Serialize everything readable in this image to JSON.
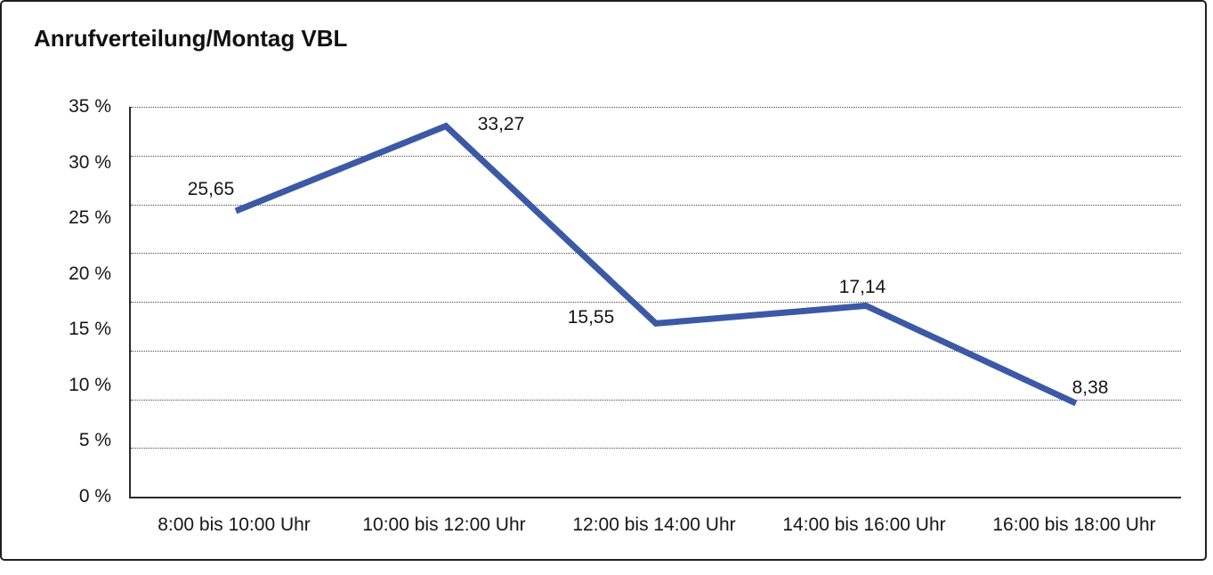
{
  "header": {
    "title": "Anrufverteilung/Montag VBL"
  },
  "chart_data": {
    "type": "line",
    "title": "Anrufverteilung/Montag VBL",
    "categories": [
      "8:00 bis 10:00 Uhr",
      "10:00 bis 12:00 Uhr",
      "12:00 bis 14:00 Uhr",
      "14:00 bis 16:00 Uhr",
      "16:00 bis 18:00 Uhr"
    ],
    "values": [
      25.65,
      33.27,
      15.55,
      17.14,
      8.38
    ],
    "value_labels": [
      "25,65",
      "33,27",
      "15,55",
      "17,14",
      "8,38"
    ],
    "y_ticks": [
      "35 %",
      "30 %",
      "25 %",
      "20 %",
      "15 %",
      "10 %",
      "5 %",
      "0 %"
    ],
    "ylim": [
      0,
      35
    ],
    "xlabel": "",
    "ylabel": "",
    "legend": "none",
    "grid": "horizontal-dotted",
    "gridline_intervals": 8,
    "line_color": "#3B59A5",
    "axis_color": "#2a2a2a",
    "text_color": "#161616"
  }
}
